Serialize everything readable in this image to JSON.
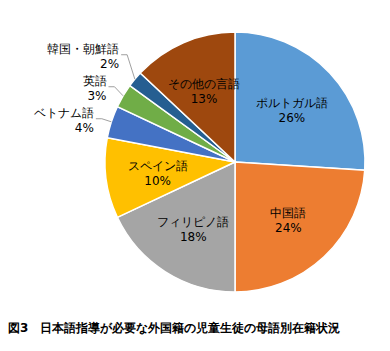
{
  "chart_data": {
    "type": "pie",
    "title": "図3　日本語指導が必要な外国籍の児童生徒の母語別在籍状況",
    "categories": [
      "ポルトガル語",
      "中国語",
      "フィリピノ語",
      "スペイン語",
      "ベトナム語",
      "英語",
      "韓国・朝鮮語",
      "その他の言語"
    ],
    "values": [
      26,
      24,
      18,
      10,
      4,
      3,
      2,
      13
    ],
    "value_labels": [
      "26%",
      "24%",
      "18%",
      "10%",
      "4%",
      "3%",
      "2%",
      "13%"
    ],
    "colors": [
      "#5b9bd5",
      "#ed7d31",
      "#a5a5a5",
      "#ffc000",
      "#4472c4",
      "#70ad47",
      "#255e91",
      "#9e480e"
    ],
    "data_labels": true
  }
}
